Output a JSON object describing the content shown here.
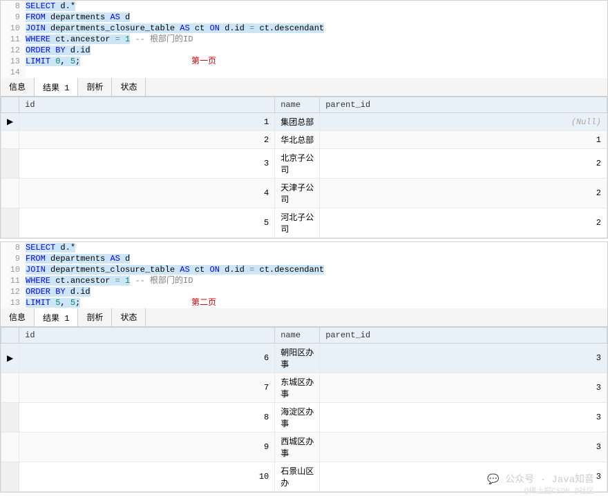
{
  "syntax": {
    "keyword_color": "#0000ff",
    "number_color": "#098658",
    "comment_color": "#808080",
    "operator_color": "#808080",
    "highlight_bg": "#cde6f7"
  },
  "panel1": {
    "code": {
      "lines": [
        {
          "num": 8,
          "tokens": [
            {
              "t": "SELECT",
              "c": "kw",
              "hl": 1
            },
            {
              "t": " ",
              "hl": 1
            },
            {
              "t": "d.*",
              "c": "id",
              "hl": 1
            }
          ]
        },
        {
          "num": 9,
          "tokens": [
            {
              "t": "FROM",
              "c": "kw",
              "hl": 1
            },
            {
              "t": " departments ",
              "c": "id",
              "hl": 1
            },
            {
              "t": "AS",
              "c": "kw",
              "hl": 1
            },
            {
              "t": " d",
              "c": "id",
              "hl": 1
            }
          ]
        },
        {
          "num": 10,
          "tokens": [
            {
              "t": "JOIN",
              "c": "kw",
              "hl": 1
            },
            {
              "t": " departments_closure_table ",
              "c": "id",
              "hl": 1
            },
            {
              "t": "AS",
              "c": "kw",
              "hl": 1
            },
            {
              "t": " ct ",
              "c": "id",
              "hl": 1
            },
            {
              "t": "ON",
              "c": "kw",
              "hl": 1
            },
            {
              "t": " d.id ",
              "c": "id",
              "hl": 1
            },
            {
              "t": "=",
              "c": "op",
              "hl": 1
            },
            {
              "t": " ct.descendant",
              "c": "id",
              "hl": 1
            }
          ]
        },
        {
          "num": 11,
          "tokens": [
            {
              "t": "WHERE",
              "c": "kw",
              "hl": 1
            },
            {
              "t": " ct.ancestor ",
              "c": "id",
              "hl": 1
            },
            {
              "t": "=",
              "c": "op",
              "hl": 1
            },
            {
              "t": " ",
              "c": "id",
              "hl": 1
            },
            {
              "t": "1",
              "c": "num",
              "hl": 1
            },
            {
              "t": " ",
              "hl": 0
            },
            {
              "t": "-- 根部门的ID",
              "c": "cmt",
              "hl": 0
            }
          ]
        },
        {
          "num": 12,
          "tokens": [
            {
              "t": "ORDER BY",
              "c": "kw",
              "hl": 1
            },
            {
              "t": " d.id",
              "c": "id",
              "hl": 1
            }
          ]
        },
        {
          "num": 13,
          "tokens": [
            {
              "t": "LIMIT",
              "c": "kw",
              "hl": 1
            },
            {
              "t": " ",
              "hl": 1
            },
            {
              "t": "0",
              "c": "num",
              "hl": 1
            },
            {
              "t": ", ",
              "c": "id",
              "hl": 1
            },
            {
              "t": "5",
              "c": "num",
              "hl": 1
            },
            {
              "t": ";",
              "c": "id",
              "hl": 1
            }
          ]
        },
        {
          "num": 14,
          "tokens": []
        }
      ],
      "page_label": "第一页"
    },
    "tabs": [
      "信息",
      "结果 1",
      "剖析",
      "状态"
    ],
    "active_tab": 1,
    "table": {
      "columns": [
        "id",
        "name",
        "parent_id"
      ],
      "rows": [
        {
          "id": 1,
          "name": "集团总部",
          "parent_id": "(Null)",
          "null": true
        },
        {
          "id": 2,
          "name": "华北总部",
          "parent_id": 1
        },
        {
          "id": 3,
          "name": "北京子公司",
          "parent_id": 2
        },
        {
          "id": 4,
          "name": "天津子公司",
          "parent_id": 2
        },
        {
          "id": 5,
          "name": "河北子公司",
          "parent_id": 2
        }
      ]
    }
  },
  "panel2": {
    "code": {
      "lines": [
        {
          "num": 8,
          "tokens": [
            {
              "t": "SELECT",
              "c": "kw",
              "hl": 1
            },
            {
              "t": " ",
              "hl": 1
            },
            {
              "t": "d.*",
              "c": "id",
              "hl": 1
            }
          ]
        },
        {
          "num": 9,
          "tokens": [
            {
              "t": "FROM",
              "c": "kw",
              "hl": 1
            },
            {
              "t": " departments ",
              "c": "id",
              "hl": 1
            },
            {
              "t": "AS",
              "c": "kw",
              "hl": 1
            },
            {
              "t": " d",
              "c": "id",
              "hl": 1
            }
          ]
        },
        {
          "num": 10,
          "tokens": [
            {
              "t": "JOIN",
              "c": "kw",
              "hl": 1
            },
            {
              "t": " departments_closure_table ",
              "c": "id",
              "hl": 1
            },
            {
              "t": "AS",
              "c": "kw",
              "hl": 1
            },
            {
              "t": " ct ",
              "c": "id",
              "hl": 1
            },
            {
              "t": "ON",
              "c": "kw",
              "hl": 1
            },
            {
              "t": " d.id ",
              "c": "id",
              "hl": 1
            },
            {
              "t": "=",
              "c": "op",
              "hl": 1
            },
            {
              "t": " ct.descendant",
              "c": "id",
              "hl": 1
            }
          ]
        },
        {
          "num": 11,
          "tokens": [
            {
              "t": "WHERE",
              "c": "kw",
              "hl": 1
            },
            {
              "t": " ct.ancestor ",
              "c": "id",
              "hl": 1
            },
            {
              "t": "=",
              "c": "op",
              "hl": 1
            },
            {
              "t": " ",
              "c": "id",
              "hl": 1
            },
            {
              "t": "1",
              "c": "num",
              "hl": 1
            },
            {
              "t": " ",
              "hl": 0
            },
            {
              "t": "-- 根部门的ID",
              "c": "cmt",
              "hl": 0
            }
          ]
        },
        {
          "num": 12,
          "tokens": [
            {
              "t": "ORDER BY",
              "c": "kw",
              "hl": 1
            },
            {
              "t": " d.id",
              "c": "id",
              "hl": 1
            }
          ]
        },
        {
          "num": 13,
          "tokens": [
            {
              "t": "LIMIT",
              "c": "kw",
              "hl": 1
            },
            {
              "t": " ",
              "hl": 1
            },
            {
              "t": "5",
              "c": "num",
              "hl": 1
            },
            {
              "t": ", ",
              "c": "id",
              "hl": 1
            },
            {
              "t": "5",
              "c": "num",
              "hl": 1
            },
            {
              "t": ";",
              "c": "id",
              "hl": 1
            }
          ]
        }
      ],
      "page_label": "第二页"
    },
    "tabs": [
      "信息",
      "结果 1",
      "剖析",
      "状态"
    ],
    "active_tab": 1,
    "table": {
      "columns": [
        "id",
        "name",
        "parent_id"
      ],
      "rows": [
        {
          "id": 6,
          "name": "朝阳区办事",
          "parent_id": 3
        },
        {
          "id": 7,
          "name": "东城区办事",
          "parent_id": 3
        },
        {
          "id": 8,
          "name": "海淀区办事",
          "parent_id": 3
        },
        {
          "id": 9,
          "name": "西城区办事",
          "parent_id": 3
        },
        {
          "id": 10,
          "name": "石景山区办",
          "parent_id": 3
        }
      ]
    }
  },
  "watermark": {
    "main": "公众号 · Java知音",
    "sub": "@稀土掘CSDN @社区"
  }
}
